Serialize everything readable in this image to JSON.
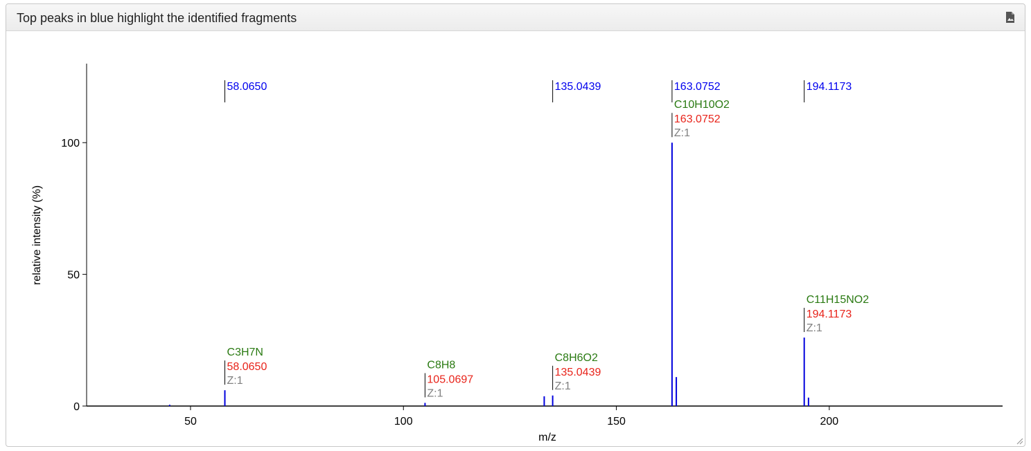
{
  "header": {
    "title": "Top peaks in blue highlight the identified fragments"
  },
  "chart_data": {
    "type": "stem",
    "x_label": "m/z",
    "y_label": "relative intensity (%)",
    "color": "#0000dd",
    "x": [
      45.1,
      58.065,
      105.0697,
      133.06,
      135.0439,
      163.0752,
      164.08,
      194.1173,
      195.12
    ],
    "values": [
      0.5,
      6,
      1.2,
      3.7,
      4,
      100,
      11,
      26,
      3.2
    ],
    "xlim": [
      25.6,
      240.7
    ],
    "ylim": [
      0,
      130
    ],
    "xticks": [
      50,
      100,
      150,
      200
    ],
    "yticks": [
      0,
      50,
      100
    ],
    "top_labels": [
      {
        "x": 58.065,
        "label": "58.0650"
      },
      {
        "x": 135.0439,
        "label": "135.0439"
      },
      {
        "x": 163.0752,
        "label": "163.0752"
      },
      {
        "x": 194.1173,
        "label": "194.1173"
      }
    ],
    "annotations": [
      {
        "x": 58.065,
        "formula": "C3H7N",
        "mass": "58.0650",
        "charge": "Z:1"
      },
      {
        "x": 105.0697,
        "formula": "C8H8",
        "mass": "105.0697",
        "charge": "Z:1"
      },
      {
        "x": 135.0439,
        "formula": "C8H6O2",
        "mass": "135.0439",
        "charge": "Z:1"
      },
      {
        "x": 163.0752,
        "formula": "C10H10O2",
        "mass": "163.0752",
        "charge": "Z:1"
      },
      {
        "x": 194.1173,
        "formula": "C11H15NO2",
        "mass": "194.1173",
        "charge": "Z:1"
      }
    ]
  }
}
